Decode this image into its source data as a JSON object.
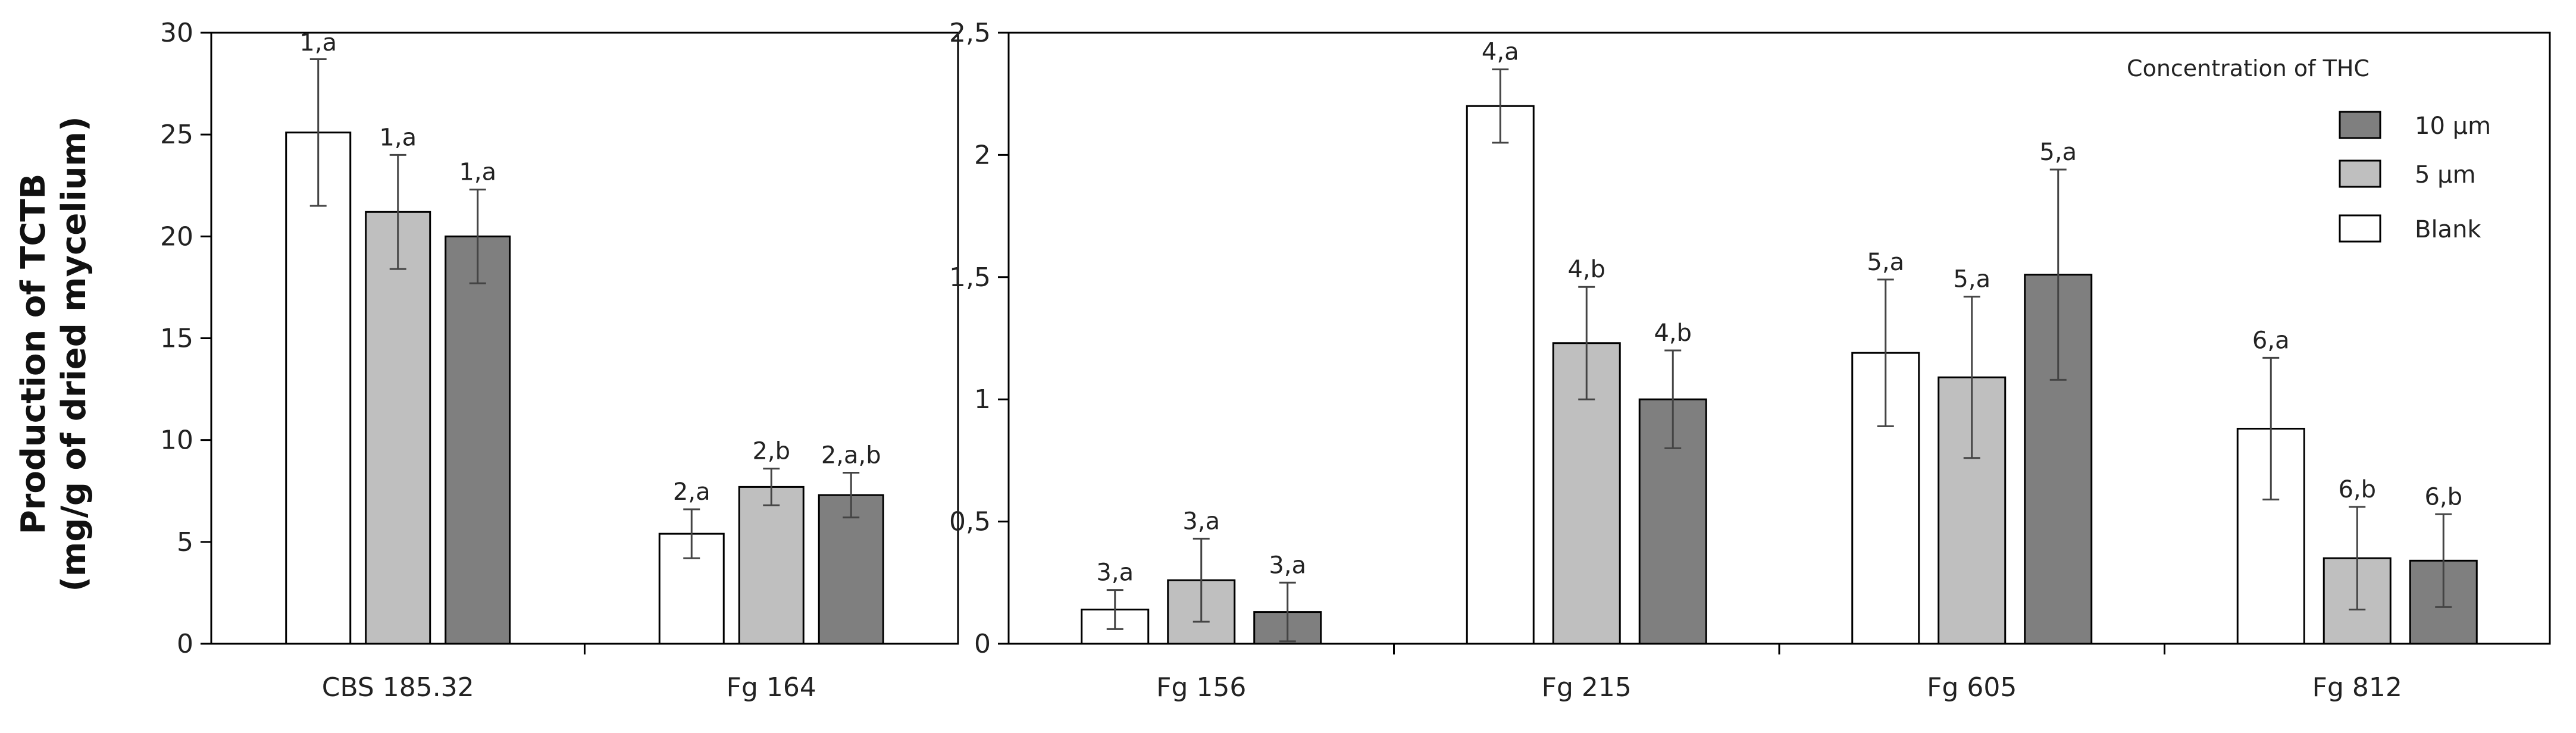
{
  "ylabel_line1": "Production of TCTB",
  "ylabel_line2": "(mg/g of dried mycelium)",
  "legend": {
    "title": "Concentration of THC",
    "entries": [
      {
        "name": "10 µm",
        "color": "#7f7f7f"
      },
      {
        "name": "5 µm",
        "color": "#bfbfbf"
      },
      {
        "name": "Blank",
        "color": "#ffffff"
      }
    ]
  },
  "chart_data": [
    {
      "type": "bar",
      "ylim": [
        0,
        30
      ],
      "yticks": [
        "0",
        "5",
        "10",
        "15",
        "20",
        "25",
        "30"
      ],
      "categories": [
        "CBS 185.32",
        "Fg 164"
      ],
      "series": [
        {
          "name": "Blank",
          "values": [
            25.1,
            5.4
          ],
          "errors": [
            3.6,
            1.2
          ],
          "labels": [
            "1,a",
            "2,a"
          ]
        },
        {
          "name": "5 µm",
          "values": [
            21.2,
            7.7
          ],
          "errors": [
            2.8,
            0.9
          ],
          "labels": [
            "1,a",
            "2,b"
          ]
        },
        {
          "name": "10 µm",
          "values": [
            20.0,
            7.3
          ],
          "errors": [
            2.3,
            1.1
          ],
          "labels": [
            "1,a",
            "2,a,b"
          ]
        }
      ]
    },
    {
      "type": "bar",
      "ylim": [
        0,
        2.5
      ],
      "yticks": [
        "0",
        "0,5",
        "1",
        "1,5",
        "2",
        "2,5"
      ],
      "categories": [
        "Fg 156",
        "Fg 215",
        "Fg 605",
        "Fg 812"
      ],
      "series": [
        {
          "name": "Blank",
          "values": [
            0.14,
            2.2,
            1.19,
            0.88
          ],
          "errors": [
            0.08,
            0.15,
            0.3,
            0.29
          ],
          "labels": [
            "3,a",
            "4,a",
            "5,a",
            "6,a"
          ]
        },
        {
          "name": "5 µm",
          "values": [
            0.26,
            1.23,
            1.09,
            0.35
          ],
          "errors": [
            0.17,
            0.23,
            0.33,
            0.21
          ],
          "labels": [
            "3,a",
            "4,b",
            "5,a",
            "6,b"
          ]
        },
        {
          "name": "10 µm",
          "values": [
            0.13,
            1.0,
            1.51,
            0.34
          ],
          "errors": [
            0.12,
            0.2,
            0.43,
            0.19
          ],
          "labels": [
            "3,a",
            "4,b",
            "5,a",
            "6,b"
          ]
        }
      ]
    }
  ]
}
